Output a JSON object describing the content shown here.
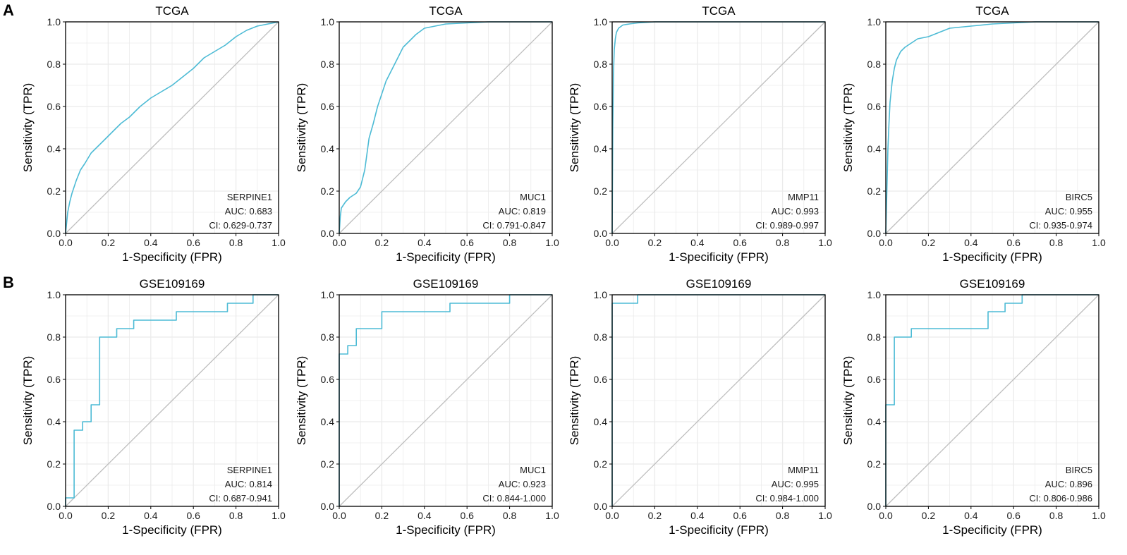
{
  "figure": {
    "panels": [
      {
        "letter": "A",
        "row_title": "TCGA"
      },
      {
        "letter": "B",
        "row_title": "GSE109169"
      }
    ],
    "xlabel": "1-Specificity (FPR)",
    "ylabel": "Sensitivity (TPR)",
    "ticks": [
      "0.0",
      "0.2",
      "0.4",
      "0.6",
      "0.8",
      "1.0"
    ],
    "colors": {
      "curve": "#4DBBD5",
      "diagonal": "#BEBEBE",
      "grid": "#EBEBEB",
      "axis": "#000000"
    }
  },
  "chart_data": [
    {
      "type": "line",
      "title": "TCGA",
      "gene": "SERPINE1",
      "auc_label": "AUC: 0.683",
      "ci_label": "CI: 0.629-0.737",
      "xlabel": "1-Specificity (FPR)",
      "ylabel": "Sensitivity (TPR)",
      "xlim": [
        0,
        1
      ],
      "ylim": [
        0,
        1
      ],
      "fpr": [
        0,
        0.01,
        0.02,
        0.03,
        0.05,
        0.07,
        0.09,
        0.12,
        0.15,
        0.18,
        0.22,
        0.26,
        0.3,
        0.35,
        0.4,
        0.45,
        0.5,
        0.55,
        0.6,
        0.65,
        0.7,
        0.75,
        0.8,
        0.85,
        0.9,
        0.95,
        1.0
      ],
      "tpr": [
        0,
        0.1,
        0.15,
        0.19,
        0.25,
        0.3,
        0.33,
        0.38,
        0.41,
        0.44,
        0.48,
        0.52,
        0.55,
        0.6,
        0.64,
        0.67,
        0.7,
        0.74,
        0.78,
        0.83,
        0.86,
        0.89,
        0.93,
        0.96,
        0.98,
        0.99,
        1.0
      ]
    },
    {
      "type": "line",
      "title": "TCGA",
      "gene": "MUC1",
      "auc_label": "AUC: 0.819",
      "ci_label": "CI: 0.791-0.847",
      "xlabel": "1-Specificity (FPR)",
      "ylabel": "Sensitivity (TPR)",
      "xlim": [
        0,
        1
      ],
      "ylim": [
        0,
        1
      ],
      "fpr": [
        0,
        0.005,
        0.01,
        0.03,
        0.05,
        0.08,
        0.1,
        0.12,
        0.14,
        0.16,
        0.18,
        0.2,
        0.22,
        0.25,
        0.28,
        0.3,
        0.33,
        0.36,
        0.4,
        0.45,
        0.5,
        0.6,
        0.7,
        0.8,
        0.9,
        1.0
      ],
      "tpr": [
        0,
        0.08,
        0.12,
        0.15,
        0.17,
        0.19,
        0.22,
        0.3,
        0.45,
        0.52,
        0.6,
        0.66,
        0.72,
        0.78,
        0.84,
        0.88,
        0.91,
        0.94,
        0.97,
        0.98,
        0.99,
        0.995,
        1.0,
        1.0,
        1.0,
        1.0
      ]
    },
    {
      "type": "line",
      "title": "TCGA",
      "gene": "MMP11",
      "auc_label": "AUC: 0.993",
      "ci_label": "CI: 0.989-0.997",
      "xlabel": "1-Specificity (FPR)",
      "ylabel": "Sensitivity (TPR)",
      "xlim": [
        0,
        1
      ],
      "ylim": [
        0,
        1
      ],
      "fpr": [
        0,
        0.003,
        0.006,
        0.01,
        0.015,
        0.02,
        0.03,
        0.05,
        0.08,
        0.12,
        0.2,
        0.4,
        0.6,
        0.8,
        1.0
      ],
      "tpr": [
        0,
        0.5,
        0.75,
        0.87,
        0.92,
        0.95,
        0.97,
        0.985,
        0.99,
        0.995,
        1.0,
        1.0,
        1.0,
        1.0,
        1.0
      ]
    },
    {
      "type": "line",
      "title": "TCGA",
      "gene": "BIRC5",
      "auc_label": "AUC: 0.955",
      "ci_label": "CI: 0.935-0.974",
      "xlabel": "1-Specificity (FPR)",
      "ylabel": "Sensitivity (TPR)",
      "xlim": [
        0,
        1
      ],
      "ylim": [
        0,
        1
      ],
      "fpr": [
        0,
        0.005,
        0.01,
        0.015,
        0.02,
        0.03,
        0.04,
        0.05,
        0.07,
        0.09,
        0.12,
        0.15,
        0.2,
        0.25,
        0.3,
        0.4,
        0.5,
        0.6,
        0.7,
        0.8,
        1.0
      ],
      "tpr": [
        0,
        0.2,
        0.4,
        0.52,
        0.62,
        0.72,
        0.78,
        0.82,
        0.86,
        0.88,
        0.9,
        0.92,
        0.93,
        0.95,
        0.97,
        0.98,
        0.99,
        0.995,
        1.0,
        1.0,
        1.0
      ]
    },
    {
      "type": "line",
      "title": "GSE109169",
      "gene": "SERPINE1",
      "auc_label": "AUC: 0.814",
      "ci_label": "CI: 0.687-0.941",
      "xlabel": "1-Specificity (FPR)",
      "ylabel": "Sensitivity (TPR)",
      "xlim": [
        0,
        1
      ],
      "ylim": [
        0,
        1
      ],
      "fpr": [
        0,
        0,
        0.04,
        0.04,
        0.08,
        0.08,
        0.12,
        0.12,
        0.16,
        0.16,
        0.24,
        0.24,
        0.32,
        0.32,
        0.52,
        0.52,
        0.76,
        0.76,
        0.88,
        0.88,
        1.0
      ],
      "tpr": [
        0,
        0.04,
        0.04,
        0.36,
        0.36,
        0.4,
        0.4,
        0.48,
        0.48,
        0.8,
        0.8,
        0.84,
        0.84,
        0.88,
        0.88,
        0.92,
        0.92,
        0.96,
        0.96,
        1.0,
        1.0
      ]
    },
    {
      "type": "line",
      "title": "GSE109169",
      "gene": "MUC1",
      "auc_label": "AUC: 0.923",
      "ci_label": "CI: 0.844-1.000",
      "xlabel": "1-Specificity (FPR)",
      "ylabel": "Sensitivity (TPR)",
      "xlim": [
        0,
        1
      ],
      "ylim": [
        0,
        1
      ],
      "fpr": [
        0,
        0,
        0.04,
        0.04,
        0.08,
        0.08,
        0.2,
        0.2,
        0.52,
        0.52,
        0.8,
        0.8,
        1.0
      ],
      "tpr": [
        0,
        0.72,
        0.72,
        0.76,
        0.76,
        0.84,
        0.84,
        0.92,
        0.92,
        0.96,
        0.96,
        1.0,
        1.0
      ]
    },
    {
      "type": "line",
      "title": "GSE109169",
      "gene": "MMP11",
      "auc_label": "AUC: 0.995",
      "ci_label": "CI: 0.984-1.000",
      "xlabel": "1-Specificity (FPR)",
      "ylabel": "Sensitivity (TPR)",
      "xlim": [
        0,
        1
      ],
      "ylim": [
        0,
        1
      ],
      "fpr": [
        0,
        0,
        0.12,
        0.12,
        1.0
      ],
      "tpr": [
        0,
        0.96,
        0.96,
        1.0,
        1.0
      ]
    },
    {
      "type": "line",
      "title": "GSE109169",
      "gene": "BIRC5",
      "auc_label": "AUC: 0.896",
      "ci_label": "CI: 0.806-0.986",
      "xlabel": "1-Specificity (FPR)",
      "ylabel": "Sensitivity (TPR)",
      "xlim": [
        0,
        1
      ],
      "ylim": [
        0,
        1
      ],
      "fpr": [
        0,
        0,
        0.04,
        0.04,
        0.12,
        0.12,
        0.48,
        0.48,
        0.56,
        0.56,
        0.64,
        0.64,
        1.0
      ],
      "tpr": [
        0,
        0.48,
        0.48,
        0.8,
        0.8,
        0.84,
        0.84,
        0.92,
        0.92,
        0.96,
        0.96,
        1.0,
        1.0
      ]
    }
  ]
}
